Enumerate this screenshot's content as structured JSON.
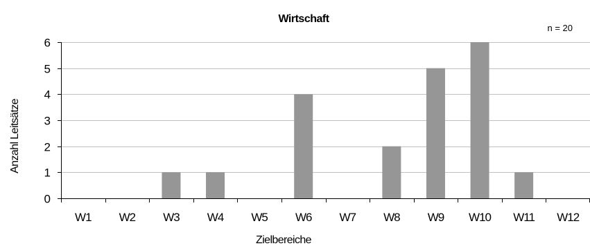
{
  "chart_data": {
    "type": "bar",
    "title": "Wirtschaft",
    "note": "n = 20",
    "xlabel": "Zielbereiche",
    "ylabel": "Anzahl Leitsätze",
    "categories": [
      "W1",
      "W2",
      "W3",
      "W4",
      "W5",
      "W6",
      "W7",
      "W8",
      "W9",
      "W10",
      "W11",
      "W12"
    ],
    "values": [
      0,
      0,
      1,
      1,
      0,
      4,
      0,
      2,
      5,
      6,
      1,
      0
    ],
    "ylim": [
      0,
      6
    ],
    "yticks": [
      0,
      1,
      2,
      3,
      4,
      5,
      6
    ],
    "grid": true,
    "bar_color": "#969696",
    "grid_color": "#c0c0c0"
  }
}
